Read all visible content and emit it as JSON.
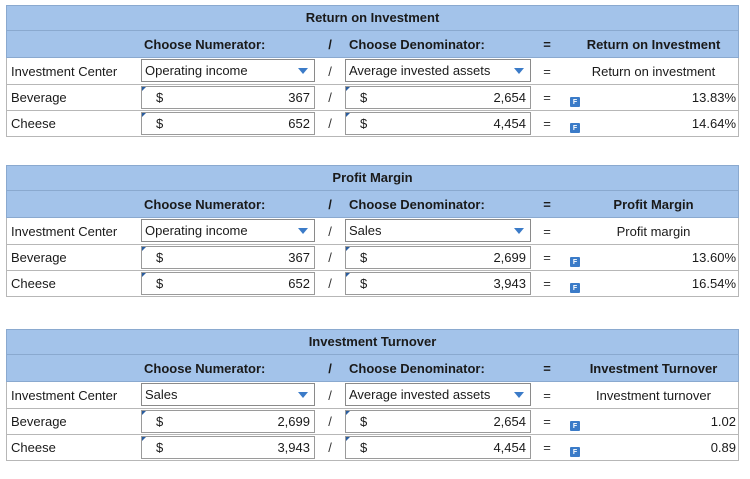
{
  "sections": [
    {
      "title": "Return on Investment",
      "header": {
        "numerator": "Choose Numerator:",
        "op1": "/",
        "denominator": "Choose Denominator:",
        "op2": "=",
        "result": "Return on Investment"
      },
      "select_row": {
        "label": "Investment Center",
        "numerator": "Operating income",
        "op1": "/",
        "denominator": "Average invested assets",
        "op2": "=",
        "result": "Return on investment"
      },
      "rows": [
        {
          "label": "Beverage",
          "dollar1": "$",
          "numerator": "367",
          "op1": "/",
          "dollar2": "$",
          "denominator": "2,654",
          "op2": "=",
          "flag": "F",
          "result": "13.83%"
        },
        {
          "label": "Cheese",
          "dollar1": "$",
          "numerator": "652",
          "op1": "/",
          "dollar2": "$",
          "denominator": "4,454",
          "op2": "=",
          "flag": "F",
          "result": "14.64%"
        }
      ]
    },
    {
      "title": "Profit Margin",
      "header": {
        "numerator": "Choose Numerator:",
        "op1": "/",
        "denominator": "Choose Denominator:",
        "op2": "=",
        "result": "Profit Margin"
      },
      "select_row": {
        "label": "Investment Center",
        "numerator": "Operating income",
        "op1": "/",
        "denominator": "Sales",
        "op2": "=",
        "result": "Profit margin"
      },
      "rows": [
        {
          "label": "Beverage",
          "dollar1": "$",
          "numerator": "367",
          "op1": "/",
          "dollar2": "$",
          "denominator": "2,699",
          "op2": "=",
          "flag": "F",
          "result": "13.60%"
        },
        {
          "label": "Cheese",
          "dollar1": "$",
          "numerator": "652",
          "op1": "/",
          "dollar2": "$",
          "denominator": "3,943",
          "op2": "=",
          "flag": "F",
          "result": "16.54%"
        }
      ]
    },
    {
      "title": "Investment Turnover",
      "header": {
        "numerator": "Choose Numerator:",
        "op1": "/",
        "denominator": "Choose Denominator:",
        "op2": "=",
        "result": "Investment Turnover"
      },
      "select_row": {
        "label": "Investment Center",
        "numerator": "Sales",
        "op1": "/",
        "denominator": "Average invested assets",
        "op2": "=",
        "result": "Investment turnover"
      },
      "rows": [
        {
          "label": "Beverage",
          "dollar1": "$",
          "numerator": "2,699",
          "op1": "/",
          "dollar2": "$",
          "denominator": "2,654",
          "op2": "=",
          "flag": "F",
          "result": "1.02"
        },
        {
          "label": "Cheese",
          "dollar1": "$",
          "numerator": "3,943",
          "op1": "/",
          "dollar2": "$",
          "denominator": "4,454",
          "op2": "=",
          "flag": "F",
          "result": "0.89"
        }
      ]
    }
  ],
  "icons": {
    "dropdown": "dropdown-arrow-icon",
    "flag": "formula-flag-icon"
  },
  "colors": {
    "header_bg": "#a3c3ea",
    "arrow": "#3b7bc8",
    "flag": "#3b7bc8"
  }
}
